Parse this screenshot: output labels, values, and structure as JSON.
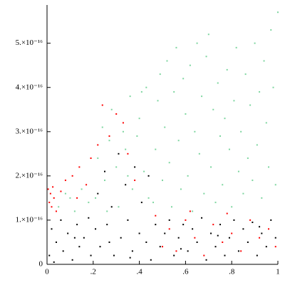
{
  "chart_data": {
    "type": "scatter",
    "xlim": [
      0,
      1
    ],
    "ylim": [
      0,
      5.8e-16
    ],
    "xticks": [
      0,
      {
        "value": 0.2,
        "label": ".2"
      },
      {
        "value": 0.4,
        "label": ".4"
      },
      {
        "value": 0.6,
        "label": ".6"
      },
      {
        "value": 0.8,
        "label": ".8"
      },
      1
    ],
    "yticks": [
      0,
      {
        "value": 1e-16,
        "label": "1.×10⁻¹⁶"
      },
      {
        "value": 2e-16,
        "label": "2.×10⁻¹⁶"
      },
      {
        "value": 3e-16,
        "label": "3.×10⁻¹⁶"
      },
      {
        "value": 4e-16,
        "label": "4.×10⁻¹⁶"
      },
      {
        "value": 5e-16,
        "label": "5.×10⁻¹⁶"
      }
    ],
    "series": [
      {
        "color": "#7ed6a0",
        "x": [
          0.05,
          0.08,
          0.12,
          0.15,
          0.18,
          0.1,
          0.21,
          0.22,
          0.24,
          0.25,
          0.27,
          0.28,
          0.3,
          0.31,
          0.33,
          0.34,
          0.36,
          0.37,
          0.39,
          0.4,
          0.42,
          0.43,
          0.44,
          0.41,
          0.26,
          0.35,
          0.46,
          0.47,
          0.48,
          0.49,
          0.5,
          0.51,
          0.52,
          0.53,
          0.54,
          0.55,
          0.56,
          0.57,
          0.58,
          0.59,
          0.6,
          0.61,
          0.62,
          0.63,
          0.64,
          0.65,
          0.66,
          0.67,
          0.68,
          0.69,
          0.7,
          0.71,
          0.72,
          0.73,
          0.74,
          0.75,
          0.76,
          0.77,
          0.78,
          0.79,
          0.8,
          0.81,
          0.82,
          0.83,
          0.84,
          0.85,
          0.86,
          0.87,
          0.88,
          0.89,
          0.9,
          0.91,
          0.92,
          0.93,
          0.94,
          0.95,
          0.96,
          0.97,
          0.98,
          0.99,
          1.0
        ],
        "values": [
          1.3e-16,
          1.6e-16,
          1.2e-16,
          1.7e-16,
          1.4e-16,
          1.5e-16,
          1.5e-16,
          2.4e-16,
          3.1e-16,
          1.9e-16,
          2.8e-16,
          3.5e-16,
          2.2e-16,
          1.3e-16,
          3e-16,
          2.6e-16,
          3.8e-16,
          1.7e-16,
          2.9e-16,
          3.3e-16,
          2.1e-16,
          4e-16,
          1.5e-16,
          3.9e-16,
          1.2e-16,
          2e-16,
          1.4e-16,
          2.6e-16,
          3.7e-16,
          4.3e-16,
          1.9e-16,
          3.1e-16,
          4.6e-16,
          2.3e-16,
          1.3e-16,
          3.9e-16,
          4.9e-16,
          2.8e-16,
          1.7e-16,
          4.2e-16,
          3.4e-16,
          2e-16,
          4.5e-16,
          1.2e-16,
          3e-16,
          5e-16,
          2.5e-16,
          3.8e-16,
          1.6e-16,
          4.7e-16,
          5.2e-16,
          2.2e-16,
          3.5e-16,
          1.4e-16,
          4.1e-16,
          2.9e-16,
          1.8e-16,
          3.3e-16,
          4.4e-16,
          2.6e-16,
          1.3e-16,
          3.7e-16,
          4.9e-16,
          2.1e-16,
          3e-16,
          1.6e-16,
          4.3e-16,
          2.4e-16,
          3.6e-16,
          1.9e-16,
          5e-16,
          2.7e-16,
          3.9e-16,
          1.5e-16,
          4.6e-16,
          3.2e-16,
          2.2e-16,
          5.3e-16,
          4e-16,
          1.8e-16,
          5.7e-16
        ]
      },
      {
        "color": "#000000",
        "x": [
          0.01,
          0.02,
          0.04,
          0.06,
          0.07,
          0.09,
          0.11,
          0.13,
          0.14,
          0.16,
          0.18,
          0.19,
          0.21,
          0.22,
          0.23,
          0.25,
          0.26,
          0.28,
          0.29,
          0.31,
          0.32,
          0.34,
          0.35,
          0.37,
          0.38,
          0.4,
          0.41,
          0.43,
          0.44,
          0.45,
          0.47,
          0.49,
          0.51,
          0.53,
          0.55,
          0.57,
          0.59,
          0.61,
          0.63,
          0.65,
          0.67,
          0.69,
          0.71,
          0.73,
          0.75,
          0.77,
          0.79,
          0.81,
          0.83,
          0.85,
          0.87,
          0.89,
          0.91,
          0.93,
          0.95,
          0.97,
          0.99,
          0.03,
          0.12,
          0.27,
          0.36,
          0.58,
          0.74,
          0.92
        ],
        "values": [
          2e-17,
          8e-17,
          5e-17,
          1e-16,
          3e-17,
          7e-17,
          1e-17,
          9e-17,
          4e-17,
          6e-17,
          1.05e-16,
          2e-17,
          8e-17,
          1.6e-16,
          4e-17,
          2.1e-16,
          9e-17,
          1.3e-16,
          2e-17,
          2.5e-16,
          6e-17,
          1.8e-16,
          1e-16,
          3e-17,
          2.2e-16,
          7e-17,
          1.4e-16,
          5e-17,
          2e-16,
          1e-17,
          9e-17,
          4e-17,
          7e-17,
          1e-16,
          2e-17,
          6e-17,
          9e-17,
          3e-17,
          8e-17,
          5e-17,
          1.05e-16,
          1e-17,
          7e-17,
          4e-17,
          9e-17,
          2e-17,
          6e-17,
          1e-16,
          3e-17,
          8e-17,
          5e-17,
          9.5e-17,
          2e-17,
          7e-17,
          4e-17,
          1e-16,
          6e-17,
          5e-18,
          6e-17,
          5e-17,
          1.5e-17,
          3.5e-17,
          6.5e-17,
          8.5e-17
        ]
      },
      {
        "color": "#ff0000",
        "x": [
          0.005,
          0.01,
          0.015,
          0.02,
          0.025,
          0.03,
          0.04,
          0.06,
          0.08,
          0.11,
          0.14,
          0.17,
          0.19,
          0.22,
          0.24,
          0.27,
          0.3,
          0.33,
          0.35,
          0.38,
          0.47,
          0.5,
          0.53,
          0.56,
          0.6,
          0.64,
          0.68,
          0.72,
          0.76,
          0.8,
          0.84,
          0.88,
          0.92,
          0.96,
          0.99,
          0.13,
          0.62,
          0.78
        ],
        "values": [
          1.7e-16,
          1.4e-16,
          1.6e-16,
          1.3e-16,
          1.75e-16,
          1.5e-16,
          1.2e-16,
          1.65e-16,
          1.9e-16,
          2e-16,
          2.2e-16,
          1.8e-16,
          2.4e-16,
          2.7e-16,
          3.6e-16,
          2.9e-16,
          3.4e-16,
          3.2e-16,
          2.5e-16,
          1.9e-16,
          1.1e-16,
          4e-17,
          8e-17,
          3e-17,
          1e-16,
          6e-17,
          2e-17,
          9e-17,
          5e-17,
          7e-17,
          3e-17,
          1e-16,
          6e-17,
          8e-17,
          4e-17,
          1.5e-16,
          1.2e-16,
          1.15e-16
        ]
      }
    ]
  }
}
